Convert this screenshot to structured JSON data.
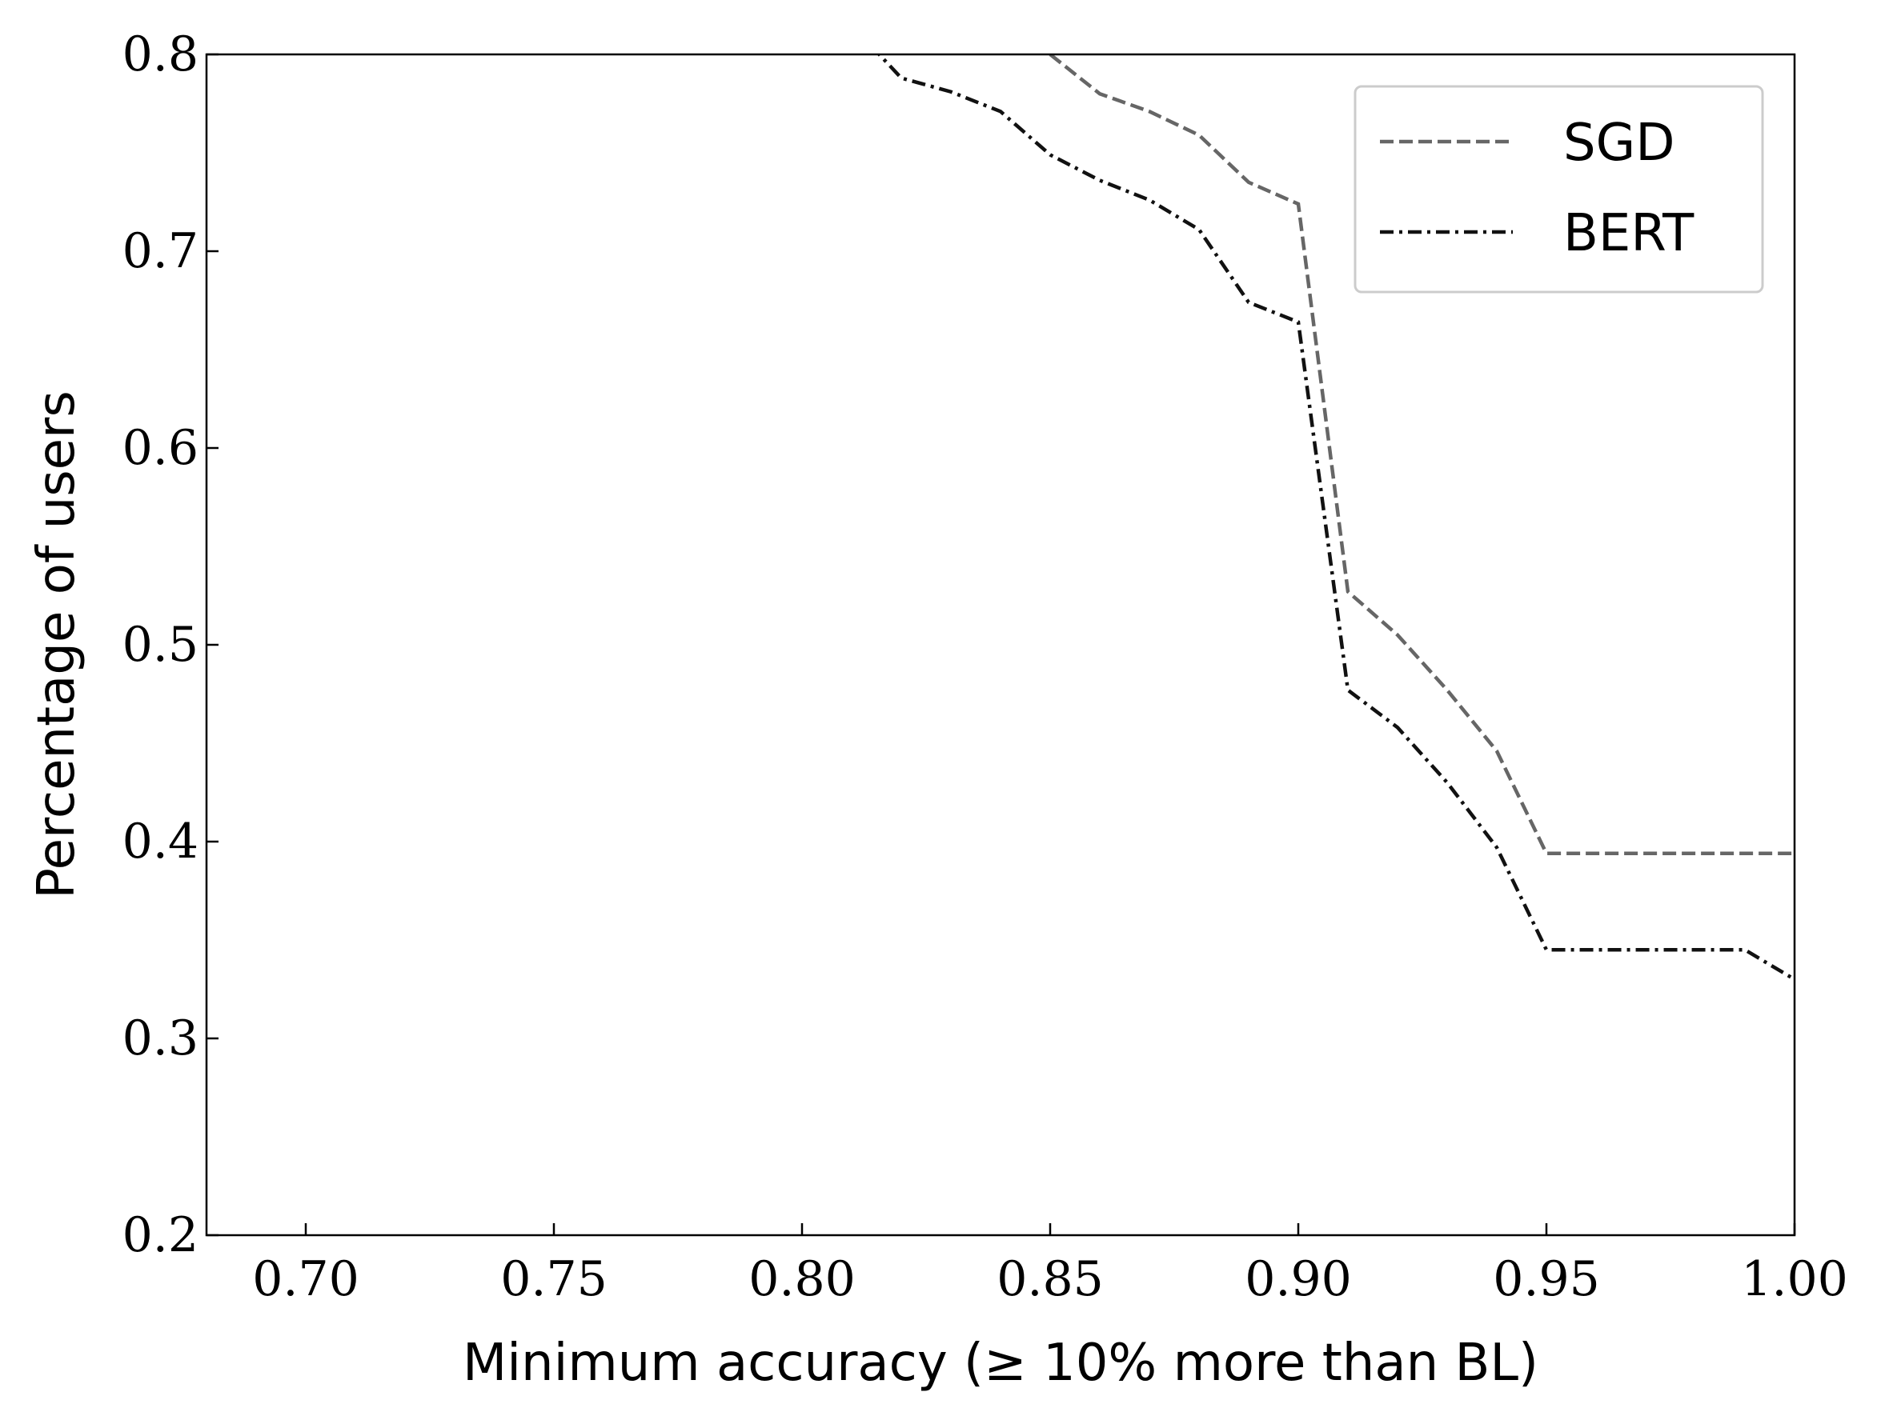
{
  "chart_data": {
    "type": "line",
    "xlabel": "Minimum accuracy (≥ 10% more than BL)",
    "ylabel": "Percentage of users",
    "x": [
      0.81,
      0.82,
      0.83,
      0.84,
      0.85,
      0.86,
      0.87,
      0.88,
      0.89,
      0.9,
      0.91,
      0.92,
      0.93,
      0.94,
      0.95,
      0.96,
      0.97,
      0.98,
      0.99,
      1.0
    ],
    "series": [
      {
        "name": "SGD",
        "color": "#666666",
        "linestyle": "dashed",
        "values": [
          null,
          null,
          null,
          null,
          0.8,
          0.78,
          0.771,
          0.759,
          0.735,
          0.724,
          0.527,
          0.505,
          0.477,
          0.446,
          0.394,
          0.394,
          0.394,
          0.394,
          0.394,
          0.394
        ]
      },
      {
        "name": "BERT",
        "color": "#111111",
        "linestyle": "dashdot",
        "values": [
          0.815,
          0.788,
          0.781,
          0.771,
          0.749,
          0.736,
          0.726,
          0.711,
          0.674,
          0.664,
          0.477,
          0.458,
          0.43,
          0.397,
          0.345,
          0.345,
          0.345,
          0.345,
          0.345,
          0.33
        ]
      }
    ],
    "xlim": [
      0.68,
      1.0
    ],
    "ylim": [
      0.2,
      0.8
    ],
    "xticks": [
      {
        "value": 0.7,
        "label": "0.70"
      },
      {
        "value": 0.75,
        "label": "0.75"
      },
      {
        "value": 0.8,
        "label": "0.80"
      },
      {
        "value": 0.85,
        "label": "0.85"
      },
      {
        "value": 0.9,
        "label": "0.90"
      },
      {
        "value": 0.95,
        "label": "0.95"
      },
      {
        "value": 1.0,
        "label": "1.00"
      }
    ],
    "yticks": [
      0.2,
      0.3,
      0.4,
      0.5,
      0.6,
      0.7,
      0.8
    ],
    "legend": "upper right"
  }
}
